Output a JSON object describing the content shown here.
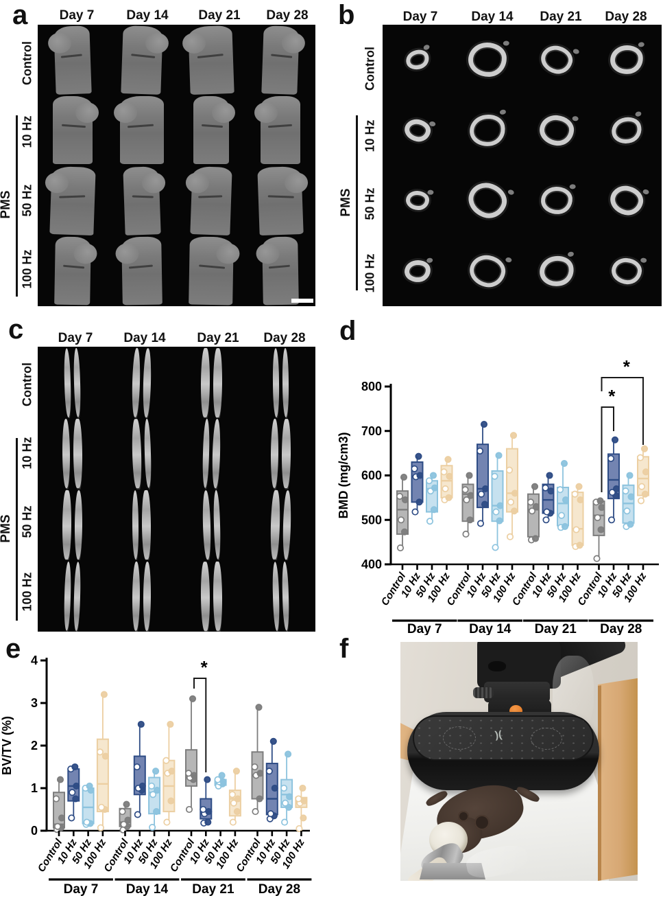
{
  "panels": {
    "a": {
      "letter": "a",
      "col_headers": [
        "Day 7",
        "Day 14",
        "Day 21",
        "Day 28"
      ],
      "row_labels": [
        "Control",
        "10 Hz",
        "50 Hz",
        "100 Hz"
      ],
      "group_label": "PMS"
    },
    "b": {
      "letter": "b",
      "col_headers": [
        "Day 7",
        "Day 14",
        "Day 21",
        "Day 28"
      ],
      "row_labels": [
        "Control",
        "10 Hz",
        "50 Hz",
        "100 Hz"
      ],
      "group_label": "PMS"
    },
    "c": {
      "letter": "c",
      "col_headers": [
        "Day 7",
        "Day 14",
        "Day 21",
        "Day 28"
      ],
      "row_labels": [
        "Control",
        "10 Hz",
        "50 Hz",
        "100 Hz"
      ],
      "group_label": "PMS"
    },
    "d": {
      "letter": "d"
    },
    "e": {
      "letter": "e"
    },
    "f": {
      "letter": "f"
    }
  },
  "colors": {
    "conditions": [
      {
        "name": "Control",
        "stroke": "#7d7d7d",
        "fill": "#a9a9a9"
      },
      {
        "name": "10 Hz",
        "stroke": "#2e4c85",
        "fill": "#5b6fa3"
      },
      {
        "name": "50 Hz",
        "stroke": "#8cc3de",
        "fill": "#bcdcec"
      },
      {
        "name": "100 Hz",
        "stroke": "#eccfa2",
        "fill": "#f4e3c5"
      }
    ],
    "significance": "#1a1a1a"
  },
  "chart_data": [
    {
      "panel": "d",
      "type": "box",
      "ylabel": "BMD (mg/cm3)",
      "ylim": [
        400,
        800
      ],
      "yticks": [
        400,
        500,
        600,
        700,
        800
      ],
      "conditions": [
        "Control",
        "10 Hz",
        "50 Hz",
        "100 Hz"
      ],
      "groups": [
        {
          "label": "Day 7",
          "boxes": [
            {
              "lo": 437,
              "q1": 468,
              "med": 523,
              "q3": 565,
              "hi": 596,
              "pts": [
                437,
                473,
                500,
                545,
                553,
                596
              ]
            },
            {
              "lo": 518,
              "q1": 540,
              "med": 598,
              "q3": 630,
              "hi": 643,
              "pts": [
                518,
                540,
                597,
                600,
                615,
                643
              ]
            },
            {
              "lo": 497,
              "q1": 518,
              "med": 570,
              "q3": 588,
              "hi": 600,
              "pts": [
                497,
                523,
                565,
                572,
                588,
                600
              ]
            },
            {
              "lo": 545,
              "q1": 550,
              "med": 588,
              "q3": 622,
              "hi": 636,
              "pts": [
                545,
                550,
                570,
                598,
                608,
                636
              ]
            }
          ]
        },
        {
          "label": "Day 14",
          "boxes": [
            {
              "lo": 468,
              "q1": 497,
              "med": 558,
              "q3": 580,
              "hi": 600,
              "pts": [
                468,
                500,
                545,
                555,
                568,
                600
              ]
            },
            {
              "lo": 492,
              "q1": 528,
              "med": 570,
              "q3": 670,
              "hi": 715,
              "pts": [
                492,
                535,
                558,
                570,
                655,
                715
              ]
            },
            {
              "lo": 438,
              "q1": 497,
              "med": 532,
              "q3": 610,
              "hi": 645,
              "pts": [
                438,
                498,
                518,
                532,
                598,
                645
              ]
            },
            {
              "lo": 462,
              "q1": 518,
              "med": 560,
              "q3": 660,
              "hi": 690,
              "pts": [
                462,
                520,
                540,
                560,
                612,
                690
              ]
            }
          ]
        },
        {
          "label": "Day 21",
          "boxes": [
            {
              "lo": 455,
              "q1": 462,
              "med": 523,
              "q3": 558,
              "hi": 575,
              "pts": [
                455,
                458,
                520,
                530,
                540,
                575
              ]
            },
            {
              "lo": 500,
              "q1": 515,
              "med": 545,
              "q3": 580,
              "hi": 600,
              "pts": [
                500,
                515,
                518,
                565,
                572,
                600
              ]
            },
            {
              "lo": 483,
              "q1": 487,
              "med": 537,
              "q3": 573,
              "hi": 627,
              "pts": [
                483,
                485,
                510,
                545,
                568,
                627
              ]
            },
            {
              "lo": 440,
              "q1": 443,
              "med": 480,
              "q3": 562,
              "hi": 575,
              "pts": [
                440,
                443,
                478,
                545,
                558,
                575
              ]
            }
          ]
        },
        {
          "label": "Day 28",
          "boxes": [
            {
              "lo": 413,
              "q1": 465,
              "med": 510,
              "q3": 542,
              "hi": 545,
              "pts": [
                413,
                478,
                505,
                528,
                540,
                543
              ]
            },
            {
              "lo": 500,
              "q1": 548,
              "med": 590,
              "q3": 648,
              "hi": 680,
              "pts": [
                500,
                555,
                562,
                570,
                638,
                680
              ]
            },
            {
              "lo": 485,
              "q1": 493,
              "med": 537,
              "q3": 578,
              "hi": 600,
              "pts": [
                485,
                490,
                520,
                552,
                565,
                600
              ]
            },
            {
              "lo": 543,
              "q1": 555,
              "med": 593,
              "q3": 642,
              "hi": 660,
              "pts": [
                543,
                558,
                575,
                608,
                640,
                660
              ]
            }
          ]
        }
      ],
      "significance": [
        {
          "group": 3,
          "a": 0,
          "b": 1,
          "label": "*"
        },
        {
          "group": 3,
          "a": 0,
          "b": 3,
          "label": "*"
        }
      ]
    },
    {
      "panel": "e",
      "type": "box",
      "ylabel": "BV/TV (%)",
      "ylim": [
        0,
        4
      ],
      "yticks": [
        0,
        1,
        2,
        3,
        4
      ],
      "conditions": [
        "Control",
        "10 Hz",
        "50 Hz",
        "100 Hz"
      ],
      "groups": [
        {
          "label": "Day 7",
          "boxes": [
            {
              "lo": 0.03,
              "q1": 0.07,
              "med": 0.15,
              "q3": 0.9,
              "hi": 1.2,
              "pts": [
                0.03,
                0.07,
                0.1,
                0.3,
                0.75,
                1.2
              ]
            },
            {
              "lo": 0.3,
              "q1": 0.7,
              "med": 1.05,
              "q3": 1.45,
              "hi": 1.5,
              "pts": [
                0.3,
                0.75,
                0.9,
                1.05,
                1.45,
                1.5
              ]
            },
            {
              "lo": 0.15,
              "q1": 0.17,
              "med": 0.55,
              "q3": 1.0,
              "hi": 1.05,
              "pts": [
                0.15,
                0.17,
                0.2,
                0.95,
                1.0,
                1.05
              ]
            },
            {
              "lo": 0.07,
              "q1": 0.45,
              "med": 1.1,
              "q3": 2.15,
              "hi": 3.2,
              "pts": [
                0.07,
                0.5,
                0.55,
                1.75,
                1.85,
                3.2
              ]
            }
          ]
        },
        {
          "label": "Day 14",
          "boxes": [
            {
              "lo": 0.02,
              "q1": 0.1,
              "med": 0.2,
              "q3": 0.52,
              "hi": 0.62,
              "pts": [
                0.02,
                0.1,
                0.15,
                0.25,
                0.45,
                0.62
              ]
            },
            {
              "lo": 0.38,
              "q1": 0.85,
              "med": 1.0,
              "q3": 1.75,
              "hi": 2.5,
              "pts": [
                0.38,
                0.95,
                1.0,
                1.05,
                1.5,
                2.5
              ]
            },
            {
              "lo": 0.08,
              "q1": 0.4,
              "med": 0.9,
              "q3": 1.25,
              "hi": 1.4,
              "pts": [
                0.08,
                0.45,
                0.85,
                0.95,
                1.05,
                1.4
              ]
            },
            {
              "lo": 0.2,
              "q1": 0.45,
              "med": 1.05,
              "q3": 1.65,
              "hi": 2.5,
              "pts": [
                0.2,
                0.7,
                1.35,
                1.4,
                1.65,
                2.5
              ]
            }
          ]
        },
        {
          "label": "Day 21",
          "boxes": [
            {
              "lo": 0.5,
              "q1": 1.05,
              "med": 1.3,
              "q3": 1.9,
              "hi": 3.1,
              "pts": [
                0.5,
                1.2,
                1.25,
                1.3,
                1.35,
                3.1
              ]
            },
            {
              "lo": 0.18,
              "q1": 0.28,
              "med": 0.45,
              "q3": 0.75,
              "hi": 1.2,
              "pts": [
                0.18,
                0.2,
                0.4,
                0.45,
                0.5,
                1.2
              ]
            },
            {
              "lo": 1.05,
              "q1": 1.07,
              "med": 1.1,
              "q3": 1.2,
              "hi": 1.3,
              "pts": [
                1.05,
                1.1,
                1.15,
                1.15,
                1.2,
                1.3
              ]
            },
            {
              "lo": 0.2,
              "q1": 0.35,
              "med": 0.75,
              "q3": 0.95,
              "hi": 1.4,
              "pts": [
                0.2,
                0.45,
                0.65,
                0.75,
                0.85,
                1.4
              ]
            }
          ]
        },
        {
          "label": "Day 28",
          "boxes": [
            {
              "lo": 0.45,
              "q1": 0.75,
              "med": 1.3,
              "q3": 1.85,
              "hi": 2.9,
              "pts": [
                0.45,
                0.75,
                1.3,
                1.35,
                1.5,
                2.9
              ]
            },
            {
              "lo": 0.28,
              "q1": 0.38,
              "med": 0.75,
              "q3": 1.58,
              "hi": 2.1,
              "pts": [
                0.28,
                0.35,
                0.4,
                1.0,
                1.4,
                2.1
              ]
            },
            {
              "lo": 0.2,
              "q1": 0.55,
              "med": 0.85,
              "q3": 1.2,
              "hi": 1.8,
              "pts": [
                0.2,
                0.55,
                0.65,
                0.8,
                1.0,
                1.8
              ]
            },
            {
              "lo": 0.05,
              "q1": 0.55,
              "med": 0.7,
              "q3": 0.78,
              "hi": 1.0,
              "pts": [
                0.05,
                0.3,
                0.65,
                0.7,
                0.75,
                1.0
              ]
            }
          ]
        }
      ],
      "significance": [
        {
          "group": 2,
          "a": 0,
          "b": 1,
          "label": "*"
        }
      ]
    }
  ]
}
